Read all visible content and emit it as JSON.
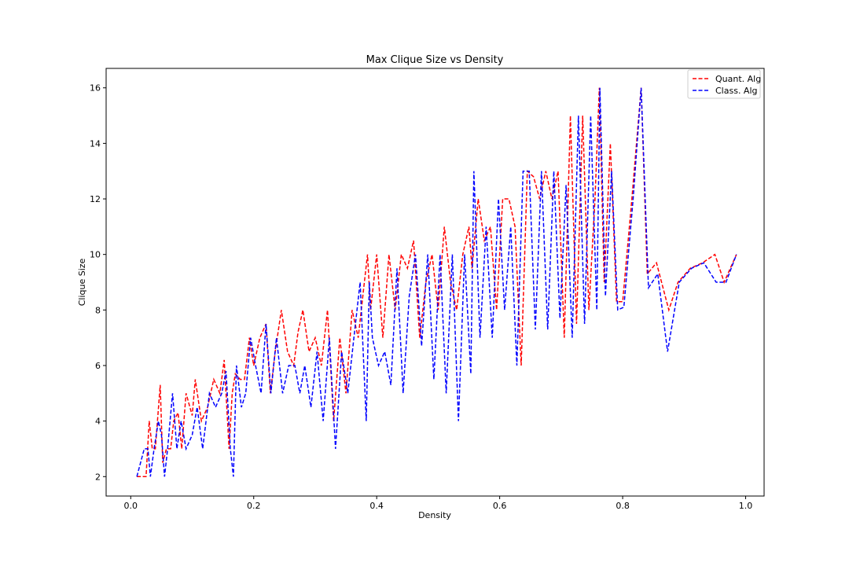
{
  "chart_data": {
    "type": "line",
    "title": "Max Clique Size vs Density",
    "xlabel": "Density",
    "ylabel": "Clique Size",
    "xlim": [
      -0.04,
      1.03
    ],
    "ylim": [
      1.3,
      16.7
    ],
    "xticks": [
      0.0,
      0.2,
      0.4,
      0.6,
      0.8,
      1.0
    ],
    "xtick_labels": [
      "0.0",
      "0.2",
      "0.4",
      "0.6",
      "0.8",
      "1.0"
    ],
    "yticks": [
      2,
      4,
      6,
      8,
      10,
      12,
      14,
      16
    ],
    "ytick_labels": [
      "2",
      "4",
      "6",
      "8",
      "10",
      "12",
      "14",
      "16"
    ],
    "grid": false,
    "legend_position": "top-right",
    "series": [
      {
        "name": "Quant. Alg",
        "color": "#ff0000",
        "style": "dashed",
        "x": [
          0.01,
          0.025,
          0.03,
          0.035,
          0.04,
          0.048,
          0.052,
          0.058,
          0.065,
          0.07,
          0.077,
          0.083,
          0.09,
          0.1,
          0.105,
          0.115,
          0.125,
          0.135,
          0.145,
          0.152,
          0.16,
          0.165,
          0.17,
          0.178,
          0.185,
          0.193,
          0.2,
          0.21,
          0.22,
          0.227,
          0.235,
          0.245,
          0.255,
          0.265,
          0.272,
          0.28,
          0.29,
          0.3,
          0.31,
          0.32,
          0.33,
          0.34,
          0.35,
          0.36,
          0.37,
          0.38,
          0.385,
          0.39,
          0.4,
          0.41,
          0.42,
          0.43,
          0.44,
          0.45,
          0.46,
          0.47,
          0.48,
          0.49,
          0.5,
          0.51,
          0.52,
          0.53,
          0.54,
          0.55,
          0.555,
          0.565,
          0.575,
          0.585,
          0.595,
          0.605,
          0.615,
          0.625,
          0.635,
          0.645,
          0.655,
          0.665,
          0.675,
          0.685,
          0.695,
          0.705,
          0.715,
          0.725,
          0.735,
          0.745,
          0.755,
          0.762,
          0.77,
          0.78,
          0.79,
          0.8,
          0.815,
          0.83,
          0.84,
          0.855,
          0.875,
          0.89,
          0.91,
          0.93,
          0.95,
          0.965,
          0.985
        ],
        "y": [
          2.0,
          2.0,
          4.0,
          3.0,
          3.0,
          5.3,
          2.5,
          3.0,
          3.0,
          4.0,
          4.3,
          3.0,
          5.0,
          4.2,
          5.5,
          4.0,
          4.5,
          5.5,
          5.0,
          6.2,
          3.0,
          5.0,
          5.7,
          5.5,
          5.5,
          7.0,
          6.0,
          7.0,
          7.5,
          5.0,
          6.5,
          8.0,
          6.5,
          6.0,
          7.2,
          8.0,
          6.5,
          7.0,
          6.0,
          8.0,
          4.0,
          7.0,
          5.0,
          8.0,
          7.0,
          9.0,
          10.0,
          8.0,
          10.0,
          7.0,
          10.0,
          8.0,
          10.0,
          9.5,
          10.5,
          7.0,
          9.0,
          10.0,
          8.0,
          11.0,
          9.0,
          8.0,
          10.0,
          11.0,
          9.5,
          12.0,
          10.5,
          11.0,
          8.0,
          12.0,
          12.0,
          11.0,
          6.0,
          13.0,
          12.8,
          12.0,
          13.0,
          12.0,
          13.0,
          7.0,
          15.0,
          7.5,
          15.0,
          8.0,
          12.0,
          16.0,
          9.0,
          14.0,
          8.3,
          8.3,
          12.0,
          16.0,
          9.3,
          9.7,
          8.0,
          9.0,
          9.5,
          9.7,
          10.0,
          9.0,
          10.0
        ]
      },
      {
        "name": "Class. Alg",
        "color": "#0000ff",
        "style": "dashed",
        "x": [
          0.01,
          0.022,
          0.028,
          0.032,
          0.038,
          0.045,
          0.05,
          0.055,
          0.06,
          0.068,
          0.075,
          0.082,
          0.09,
          0.1,
          0.108,
          0.117,
          0.128,
          0.138,
          0.148,
          0.155,
          0.162,
          0.167,
          0.172,
          0.18,
          0.187,
          0.195,
          0.203,
          0.212,
          0.22,
          0.228,
          0.237,
          0.247,
          0.257,
          0.267,
          0.275,
          0.283,
          0.293,
          0.303,
          0.313,
          0.323,
          0.333,
          0.343,
          0.353,
          0.363,
          0.373,
          0.383,
          0.388,
          0.393,
          0.403,
          0.413,
          0.423,
          0.433,
          0.443,
          0.453,
          0.463,
          0.473,
          0.483,
          0.493,
          0.503,
          0.513,
          0.523,
          0.533,
          0.543,
          0.553,
          0.558,
          0.568,
          0.578,
          0.588,
          0.598,
          0.608,
          0.618,
          0.628,
          0.638,
          0.648,
          0.658,
          0.668,
          0.678,
          0.688,
          0.698,
          0.708,
          0.718,
          0.728,
          0.738,
          0.748,
          0.758,
          0.763,
          0.772,
          0.782,
          0.792,
          0.802,
          0.817,
          0.83,
          0.842,
          0.857,
          0.873,
          0.892,
          0.912,
          0.932,
          0.952,
          0.968,
          0.985
        ],
        "y": [
          2.0,
          3.0,
          3.0,
          2.0,
          3.0,
          4.0,
          3.5,
          2.0,
          3.0,
          5.0,
          3.0,
          4.0,
          3.0,
          3.5,
          4.5,
          3.0,
          5.0,
          4.5,
          5.0,
          5.8,
          3.0,
          2.0,
          6.0,
          4.5,
          5.0,
          7.0,
          6.0,
          5.0,
          7.5,
          5.0,
          7.0,
          5.0,
          6.0,
          6.0,
          5.0,
          6.0,
          4.5,
          6.5,
          4.0,
          7.0,
          3.0,
          6.5,
          5.0,
          7.0,
          9.0,
          4.0,
          9.0,
          7.0,
          6.0,
          6.5,
          5.3,
          9.5,
          5.0,
          8.5,
          10.0,
          6.7,
          10.0,
          5.5,
          10.0,
          5.0,
          10.0,
          4.0,
          10.0,
          5.7,
          13.0,
          7.0,
          11.0,
          7.0,
          12.0,
          8.0,
          11.0,
          6.0,
          13.0,
          13.0,
          7.3,
          13.0,
          7.3,
          13.0,
          7.7,
          12.5,
          7.0,
          15.0,
          7.5,
          15.0,
          8.0,
          16.0,
          8.5,
          13.0,
          8.0,
          8.1,
          12.0,
          16.0,
          8.8,
          9.3,
          6.5,
          9.0,
          9.5,
          9.7,
          9.0,
          9.0,
          10.0
        ]
      }
    ]
  }
}
